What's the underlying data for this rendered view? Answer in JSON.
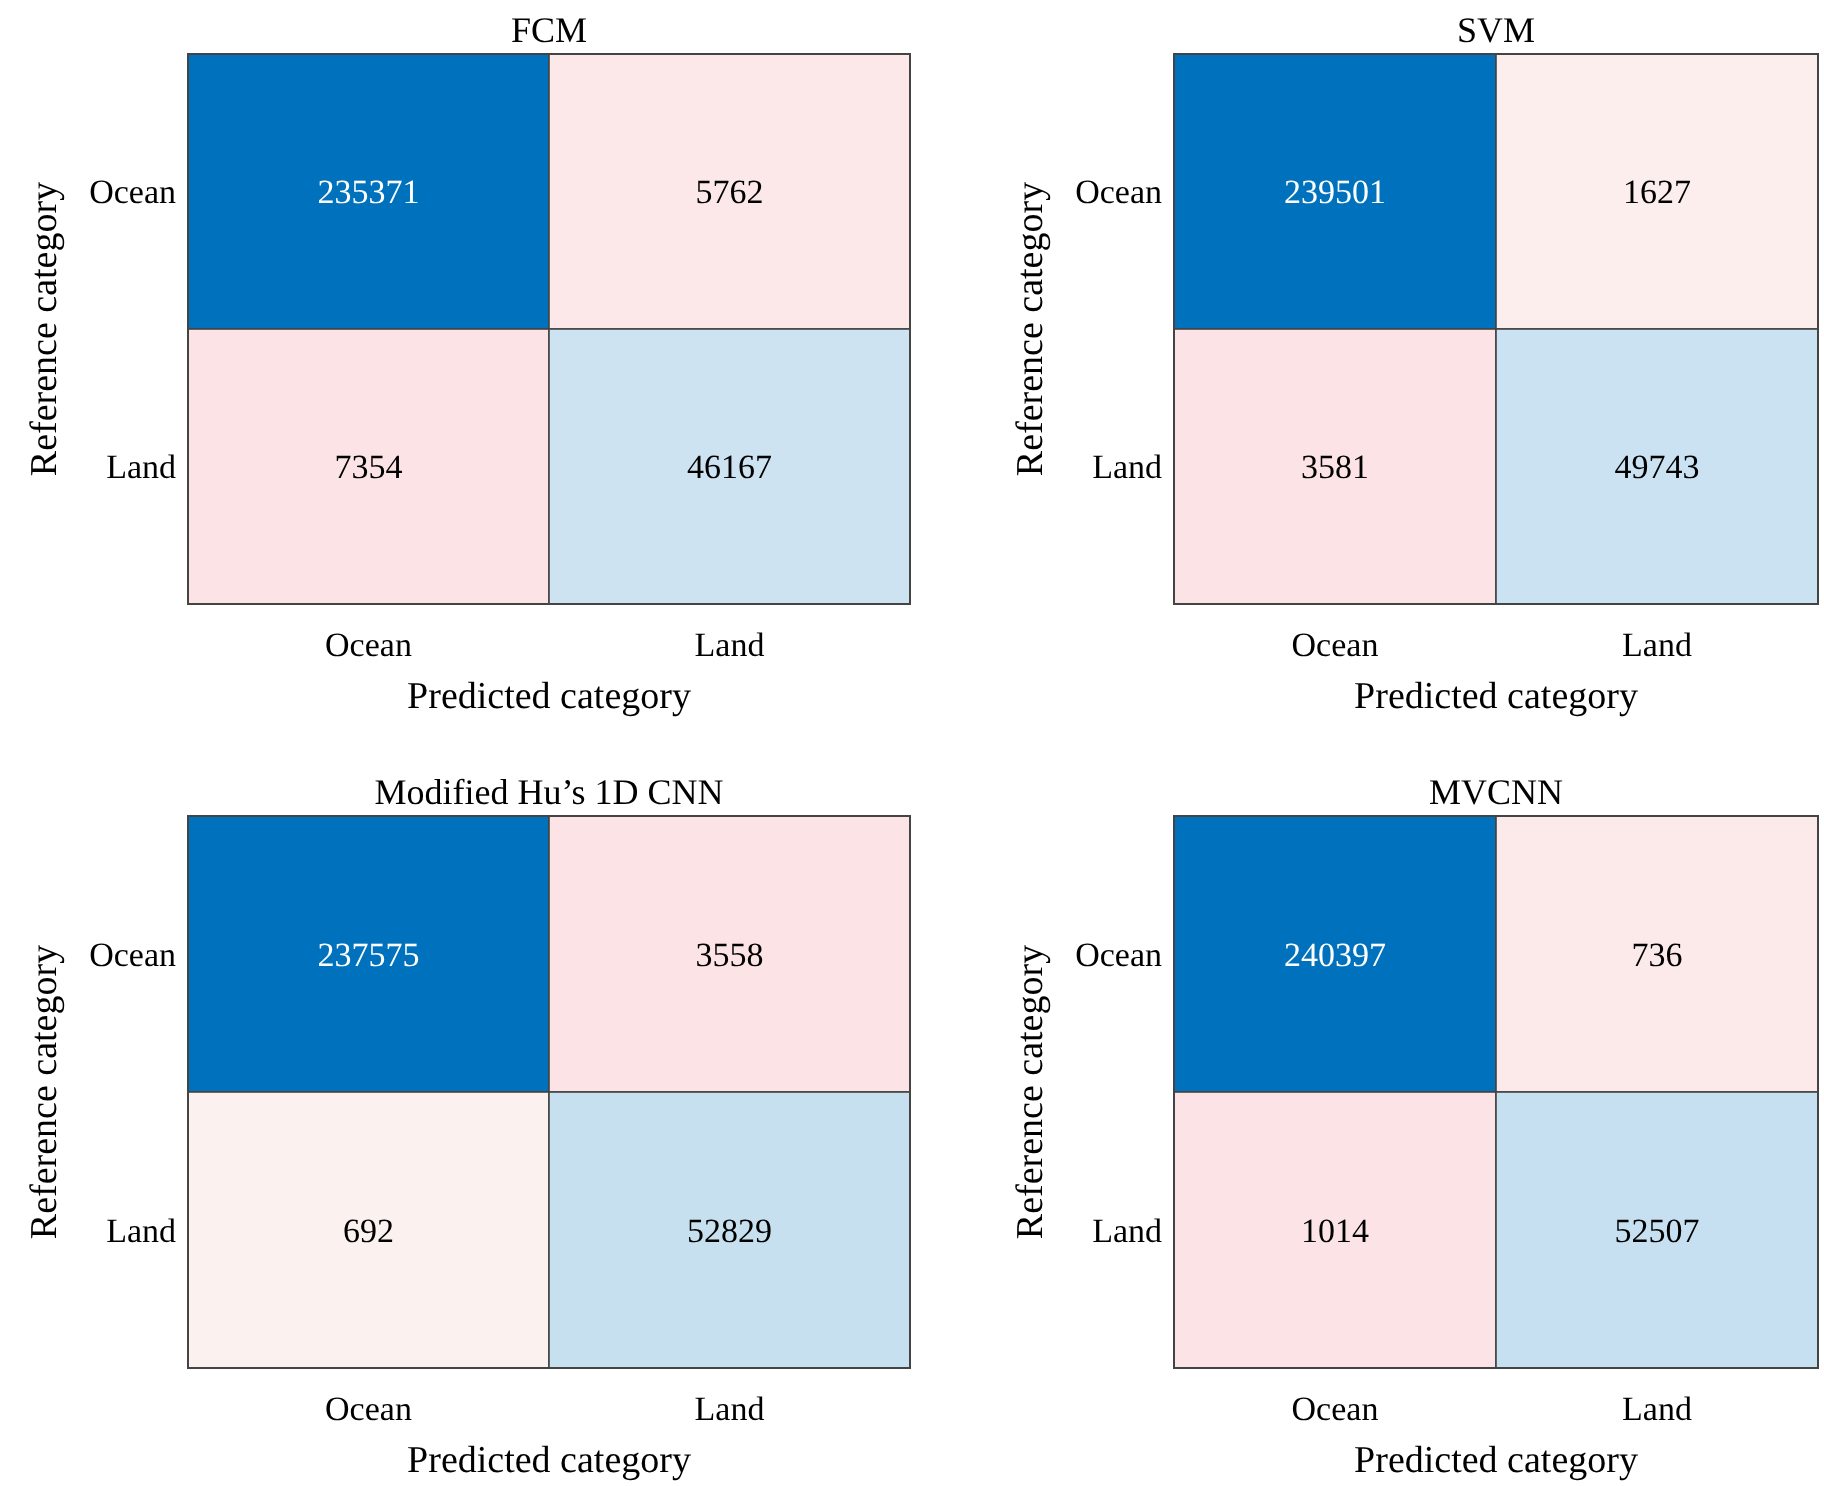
{
  "chart_data": [
    {
      "type": "heatmap",
      "title": "FCM",
      "xlabel": "Predicted category",
      "ylabel": "Reference category",
      "categories": [
        "Ocean",
        "Land"
      ],
      "y_categories": [
        "Ocean",
        "Land"
      ],
      "cells": [
        [
          235371,
          5762
        ],
        [
          7354,
          46167
        ]
      ],
      "data_labels": true
    },
    {
      "type": "heatmap",
      "title": "SVM",
      "xlabel": "Predicted category",
      "ylabel": "Reference category",
      "categories": [
        "Ocean",
        "Land"
      ],
      "y_categories": [
        "Ocean",
        "Land"
      ],
      "cells": [
        [
          239501,
          1627
        ],
        [
          3581,
          49743
        ]
      ],
      "data_labels": true
    },
    {
      "type": "heatmap",
      "title": "Modified Hu’s 1D CNN",
      "xlabel": "Predicted category",
      "ylabel": "Reference category",
      "categories": [
        "Ocean",
        "Land"
      ],
      "y_categories": [
        "Ocean",
        "Land"
      ],
      "cells": [
        [
          237575,
          3558
        ],
        [
          692,
          52829
        ]
      ],
      "data_labels": true
    },
    {
      "type": "heatmap",
      "title": "MVCNN",
      "xlabel": "Predicted category",
      "ylabel": "Reference category",
      "categories": [
        "Ocean",
        "Land"
      ],
      "y_categories": [
        "Ocean",
        "Land"
      ],
      "cells": [
        [
          240397,
          736
        ],
        [
          1014,
          52507
        ]
      ],
      "data_labels": true
    }
  ]
}
